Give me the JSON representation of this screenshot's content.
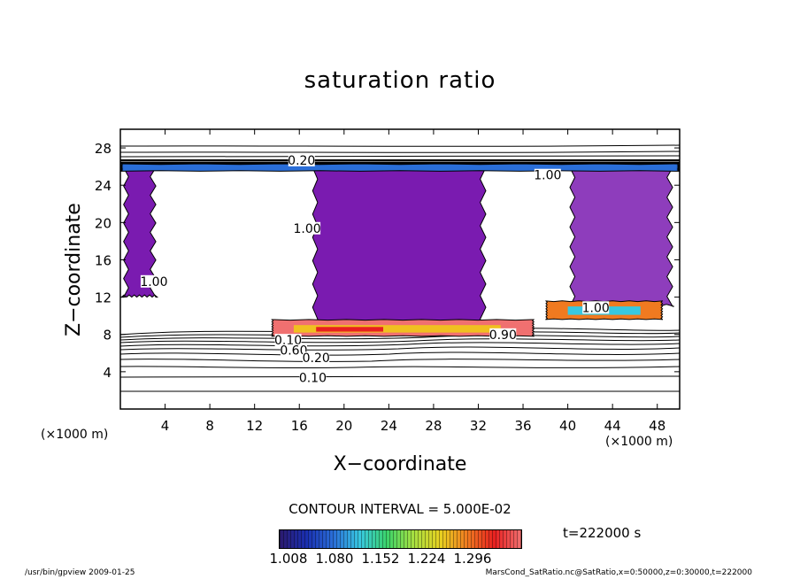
{
  "title": "saturation ratio",
  "xlabel": "X−coordinate",
  "ylabel": "Z−coordinate",
  "x_unit": "(×1000 m)",
  "y_unit": "(×1000 m)",
  "contour_interval_text": "CONTOUR INTERVAL = 5.000E-02",
  "time_text": "t=222000 s",
  "footer_left": "/usr/bin/gpview  2009-01-25",
  "footer_right": "MarsCond_SatRatio.nc@SatRatio,x=0:50000,z=0:30000,t=222000",
  "colorbar": {
    "ticks": [
      "1.008",
      "1.080",
      "1.152",
      "1.224",
      "1.296"
    ],
    "colors": [
      "#2b1a6e",
      "#1a2fb0",
      "#2a6ed8",
      "#38c8e0",
      "#3bd36a",
      "#a8e040",
      "#e8d020",
      "#f07a20",
      "#e82020",
      "#f07070"
    ]
  },
  "chart_data": {
    "type": "contour",
    "title": "saturation ratio",
    "xlabel": "X−coordinate",
    "ylabel": "Z−coordinate",
    "x_unit": "(×1000 m)",
    "y_unit": "(×1000 m)",
    "xlim": [
      0,
      50
    ],
    "ylim": [
      0,
      30
    ],
    "x_ticks": [
      4,
      8,
      12,
      16,
      20,
      24,
      28,
      32,
      36,
      40,
      44,
      48
    ],
    "y_ticks": [
      4,
      8,
      12,
      16,
      20,
      24,
      28
    ],
    "contour_interval": 0.05,
    "shade_levels": [
      1.008,
      1.08,
      1.152,
      1.224,
      1.296
    ],
    "contour_labels": [
      {
        "text": "0.20",
        "x": 16.2,
        "z": 26.5
      },
      {
        "text": "1.00",
        "x": 38.2,
        "z": 24.9
      },
      {
        "text": "1.00",
        "x": 16.7,
        "z": 19.2
      },
      {
        "text": "1.00",
        "x": 3.0,
        "z": 13.5
      },
      {
        "text": "1.00",
        "x": 42.5,
        "z": 10.7
      },
      {
        "text": "0.90",
        "x": 34.2,
        "z": 7.8
      },
      {
        "text": "0.10",
        "x": 15.0,
        "z": 7.2
      },
      {
        "text": "0.60",
        "x": 15.5,
        "z": 6.1
      },
      {
        "text": "0.20",
        "x": 17.5,
        "z": 5.3
      },
      {
        "text": "0.10",
        "x": 17.2,
        "z": 3.2
      }
    ],
    "shaded_regions": [
      {
        "name": "central-cloud",
        "level": 1.008,
        "x": [
          17.0,
          32.8
        ],
        "z": [
          8.4,
          25.9
        ]
      },
      {
        "name": "left-cloud",
        "level": 1.008,
        "x": [
          0.1,
          3.3
        ],
        "z": [
          12.0,
          25.9
        ]
      },
      {
        "name": "right-cloud",
        "level": 1.008,
        "x": [
          40.0,
          49.5
        ],
        "z": [
          11.0,
          25.9
        ]
      },
      {
        "name": "top-layer",
        "level": 1.08,
        "x": [
          0,
          50
        ],
        "z": [
          25.5,
          26.3
        ]
      },
      {
        "name": "base-band",
        "level": 1.296,
        "x": [
          13.5,
          37.0
        ],
        "z": [
          7.8,
          9.6
        ]
      },
      {
        "name": "right-band",
        "level": 1.224,
        "x": [
          38.0,
          48.5
        ],
        "z": [
          9.6,
          11.6
        ]
      }
    ]
  }
}
